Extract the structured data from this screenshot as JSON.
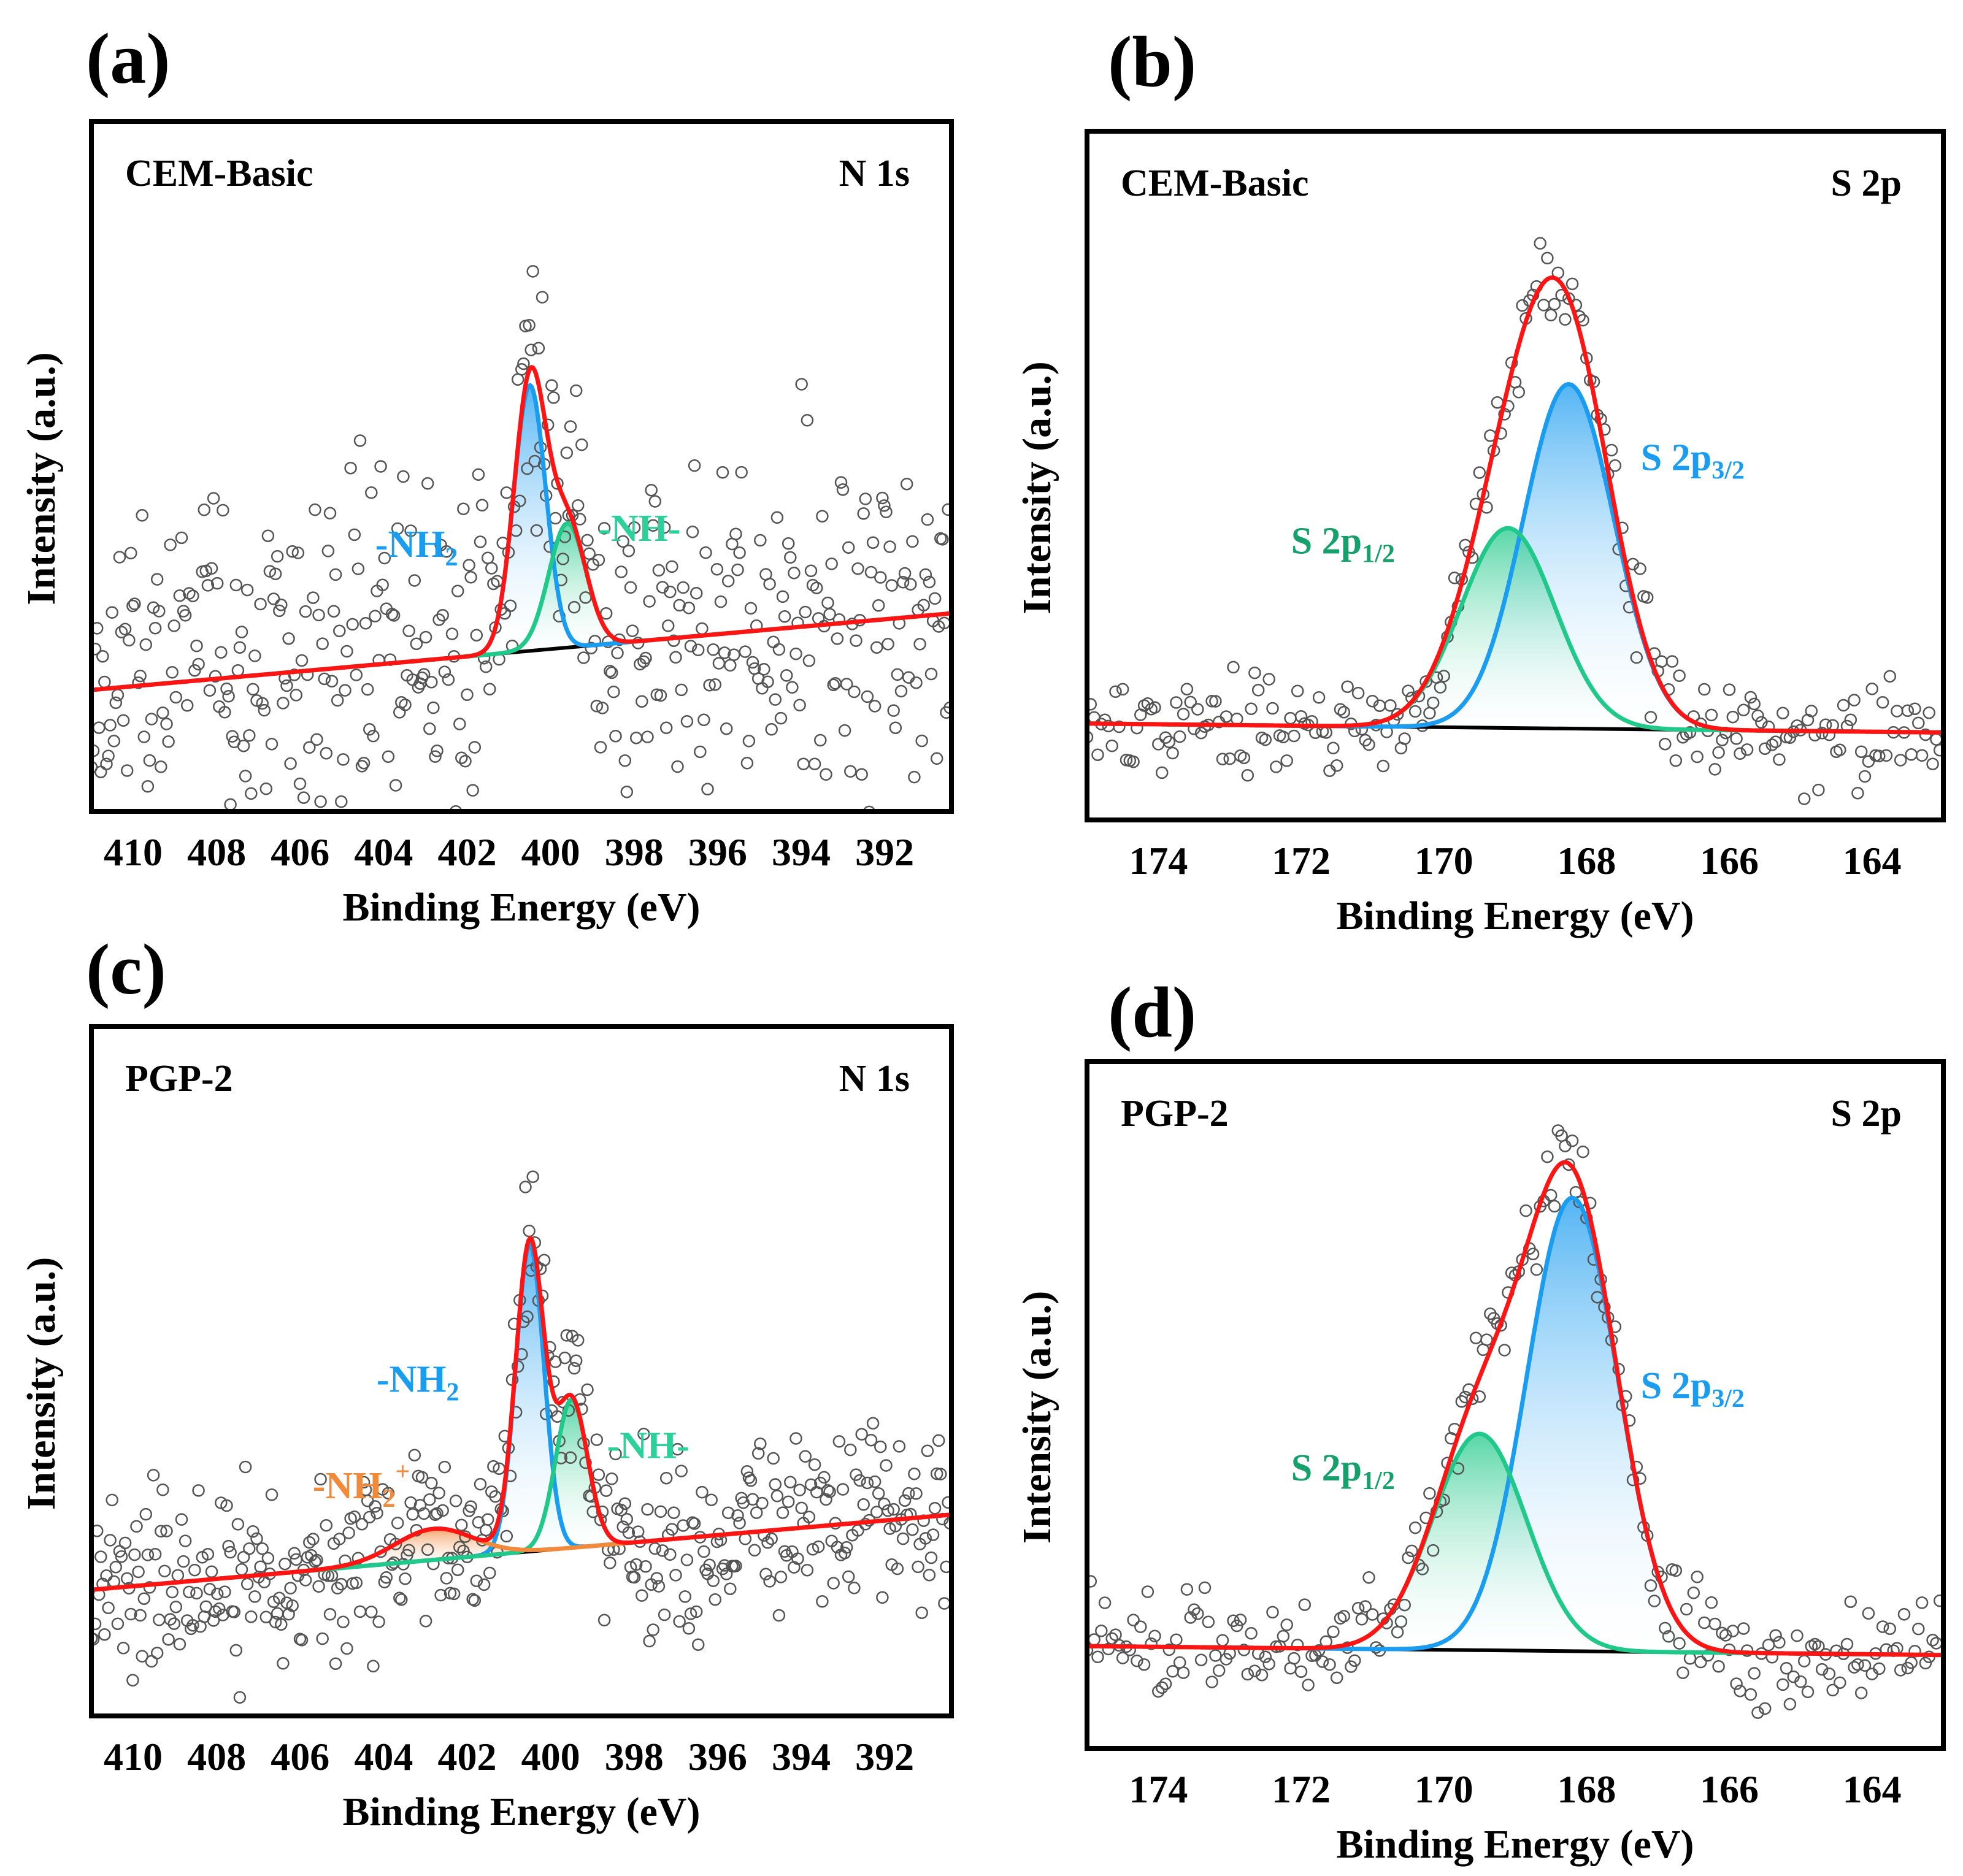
{
  "chart_data": [
    {
      "panel_label": "(a)",
      "type": "line",
      "sample": "CEM-Basic",
      "core_level": "N 1s",
      "xlabel": "Binding Energy (eV)",
      "ylabel": "Intensity (a.u.)",
      "xlim": [
        411.0,
        390.4
      ],
      "ylim": [
        0,
        1
      ],
      "xticks": [
        410,
        408,
        406,
        404,
        402,
        400,
        398,
        396,
        394,
        392
      ],
      "baseline": [
        0.176,
        0.287
      ],
      "peaks": [
        {
          "name": "-NH2",
          "center": 400.5,
          "height": 0.385,
          "fwhm": 0.9,
          "color": "#1a9cf0"
        },
        {
          "name": "-NH-",
          "center": 399.6,
          "height": 0.18,
          "fwhm": 1.05,
          "color": "#20c98a"
        }
      ],
      "envelope_color": "#ff1414",
      "scatter": {
        "step": 0.045,
        "noise": 0.24,
        "seed": 11
      },
      "annotations": [
        {
          "text": "-NH",
          "sub": "2",
          "sup": "",
          "x": 404.2,
          "y": 0.369,
          "color": "#1a9cf0"
        },
        {
          "text": "-NH-",
          "sub": "",
          "sup": "",
          "x": 398.86,
          "y": 0.392,
          "color": "#2ad29a"
        }
      ]
    },
    {
      "panel_label": "(b)",
      "type": "line",
      "sample": "CEM-Basic",
      "core_level": "S 2p",
      "xlabel": "Binding Energy (eV)",
      "ylabel": "Intensity (a.u.)",
      "xlim": [
        175.0,
        163.0
      ],
      "ylim": [
        0,
        1
      ],
      "xticks": [
        174,
        172,
        170,
        168,
        166,
        164
      ],
      "baseline": [
        0.14,
        0.127
      ],
      "peaks": [
        {
          "name": "S 2p3/2",
          "center": 168.25,
          "height": 0.5,
          "fwhm": 1.5,
          "color": "#1a9cf0"
        },
        {
          "name": "S 2p1/2",
          "center": 169.1,
          "height": 0.29,
          "fwhm": 1.55,
          "color": "#20c98a"
        }
      ],
      "envelope_color": "#ff1414",
      "scatter": {
        "step": 0.05,
        "noise": 0.07,
        "seed": 23
      },
      "annotations": [
        {
          "text": "S 2p",
          "sub": "3/2",
          "sup": "",
          "x": 167.24,
          "y": 0.508,
          "color": "#1a9cf0"
        },
        {
          "text": "S 2p",
          "sub": "1/2",
          "sup": "",
          "x": 172.14,
          "y": 0.387,
          "color": "#16a06c"
        }
      ]
    },
    {
      "panel_label": "(c)",
      "type": "line",
      "sample": "PGP-2",
      "core_level": "N 1s",
      "xlabel": "Binding Energy (eV)",
      "ylabel": "Intensity (a.u.)",
      "xlim": [
        411.0,
        390.4
      ],
      "ylim": [
        0,
        1
      ],
      "xticks": [
        410,
        408,
        406,
        404,
        402,
        400,
        398,
        396,
        394,
        392
      ],
      "baseline": [
        0.183,
        0.292
      ],
      "peaks": [
        {
          "name": "-NH2",
          "center": 400.5,
          "height": 0.445,
          "fwhm": 0.8,
          "color": "#1a9cf0"
        },
        {
          "name": "-NH-",
          "center": 399.5,
          "height": 0.215,
          "fwhm": 0.9,
          "color": "#20c98a"
        },
        {
          "name": "-NH2+",
          "center": 402.8,
          "height": 0.045,
          "fwhm": 2.2,
          "color": "#f28a3c"
        }
      ],
      "envelope_color": "#ff1414",
      "scatter": {
        "step": 0.045,
        "noise": 0.12,
        "seed": 37
      },
      "annotations": [
        {
          "text": "-NH",
          "sub": "2",
          "sup": "",
          "x": 404.17,
          "y": 0.47,
          "color": "#1a9cf0"
        },
        {
          "text": "-NH-",
          "sub": "",
          "sup": "",
          "x": 398.65,
          "y": 0.374,
          "color": "#2ad29a"
        },
        {
          "text": "-NH",
          "sub": "2",
          "sup": "+",
          "x": 405.7,
          "y": 0.316,
          "color": "#f28a3c"
        }
      ]
    },
    {
      "panel_label": "(d)",
      "type": "line",
      "sample": "PGP-2",
      "core_level": "S 2p",
      "xlabel": "Binding Energy (eV)",
      "ylabel": "Intensity (a.u.)",
      "xlim": [
        175.0,
        163.0
      ],
      "ylim": [
        0,
        1
      ],
      "xticks": [
        174,
        172,
        170,
        168,
        166,
        164
      ],
      "baseline": [
        0.149,
        0.136
      ],
      "peaks": [
        {
          "name": "S 2p3/2",
          "center": 168.2,
          "height": 0.66,
          "fwhm": 1.5,
          "color": "#1a9cf0"
        },
        {
          "name": "S 2p1/2",
          "center": 169.5,
          "height": 0.315,
          "fwhm": 1.55,
          "color": "#20c98a"
        }
      ],
      "envelope_color": "#ff1414",
      "scatter": {
        "step": 0.05,
        "noise": 0.07,
        "seed": 53
      },
      "annotations": [
        {
          "text": "S 2p",
          "sub": "3/2",
          "sup": "",
          "x": 167.24,
          "y": 0.51,
          "color": "#1a9cf0"
        },
        {
          "text": "S 2p",
          "sub": "1/2",
          "sup": "",
          "x": 172.14,
          "y": 0.39,
          "color": "#16a06c"
        }
      ]
    }
  ]
}
